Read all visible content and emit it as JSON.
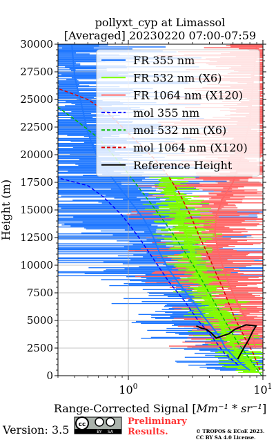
{
  "chart_data": {
    "type": "line",
    "title_line1": "pollyxt_cyp at Limassol",
    "title_line2": "[Averaged] 20230220 07:00-07:59",
    "xlabel_prefix": "Range-Corrected Signal [",
    "xlabel_math": "Mm⁻¹ * sr⁻¹",
    "xlabel_suffix": "]",
    "ylabel": "Height (m)",
    "xscale": "log",
    "xlim": [
      0.3,
      10.0
    ],
    "ylim": [
      0,
      30000
    ],
    "x_ticks": [
      {
        "value": 1,
        "base": "10",
        "exp": "0"
      },
      {
        "value": 10,
        "base": "10",
        "exp": "1"
      }
    ],
    "y_ticks": [
      "0",
      "2500",
      "5000",
      "7500",
      "10000",
      "12500",
      "15000",
      "17500",
      "20000",
      "22500",
      "25000",
      "27500",
      "30000"
    ],
    "legend_position": "top-right",
    "series": [
      {
        "name": "FR 355 nm",
        "color": "#1f77ff",
        "style": "solid",
        "points": [
          [
            8.0,
            500
          ],
          [
            7.0,
            1000
          ],
          [
            6.0,
            1800
          ],
          [
            5.2,
            2600
          ],
          [
            4.8,
            3500
          ],
          [
            4.2,
            4400
          ],
          [
            3.6,
            5400
          ],
          [
            3.0,
            6800
          ],
          [
            2.5,
            8000
          ],
          [
            2.0,
            9600
          ],
          [
            1.7,
            11200
          ],
          [
            1.5,
            12800
          ],
          [
            1.3,
            14200
          ],
          [
            1.0,
            16000
          ],
          [
            0.8,
            17500
          ],
          [
            0.6,
            19500
          ],
          [
            0.5,
            22000
          ],
          [
            0.45,
            24500
          ],
          [
            0.4,
            27000
          ],
          [
            0.38,
            30000
          ]
        ]
      },
      {
        "name": "FR 532 nm (X6)",
        "color": "#80ff00",
        "style": "solid",
        "points": [
          [
            9.0,
            300
          ],
          [
            7.0,
            1500
          ],
          [
            5.8,
            3000
          ],
          [
            5.0,
            4500
          ],
          [
            4.3,
            6000
          ],
          [
            3.8,
            7500
          ],
          [
            3.3,
            9000
          ],
          [
            3.0,
            10500
          ],
          [
            2.8,
            12000
          ],
          [
            2.6,
            13500
          ],
          [
            2.4,
            15000
          ],
          [
            2.2,
            16500
          ],
          [
            2.0,
            18000
          ]
        ]
      },
      {
        "name": "FR 1064 nm (X120)",
        "color": "#ff6666",
        "style": "solid",
        "points": [
          [
            8.8,
            2500
          ],
          [
            8.0,
            4500
          ],
          [
            6.5,
            6500
          ],
          [
            5.5,
            8500
          ],
          [
            5.0,
            10000
          ],
          [
            4.6,
            11500
          ],
          [
            4.4,
            13000
          ],
          [
            4.5,
            14500
          ],
          [
            5.0,
            16000
          ],
          [
            6.0,
            17500
          ],
          [
            7.0,
            20000
          ],
          [
            8.0,
            23000
          ],
          [
            8.5,
            27000
          ],
          [
            9.0,
            30000
          ]
        ]
      },
      {
        "name": "mol 355 nm",
        "color": "#0000ff",
        "style": "dashed",
        "points": [
          [
            6.5,
            1000
          ],
          [
            5.2,
            2000
          ],
          [
            4.2,
            3500
          ],
          [
            3.3,
            5000
          ],
          [
            2.6,
            6800
          ],
          [
            2.0,
            8500
          ],
          [
            1.55,
            10500
          ],
          [
            1.2,
            12500
          ],
          [
            0.9,
            14500
          ],
          [
            0.65,
            16200
          ],
          [
            0.5,
            17200
          ],
          [
            0.3,
            17900
          ]
        ]
      },
      {
        "name": "mol 532 nm (X6)",
        "color": "#00bb00",
        "style": "dashed",
        "points": [
          [
            9.8,
            0
          ],
          [
            8.0,
            1500
          ],
          [
            6.5,
            3000
          ],
          [
            5.2,
            5000
          ],
          [
            4.2,
            7000
          ],
          [
            3.4,
            9000
          ],
          [
            2.7,
            11000
          ],
          [
            2.1,
            13000
          ],
          [
            1.6,
            15000
          ],
          [
            1.2,
            17000
          ],
          [
            0.9,
            19000
          ],
          [
            0.6,
            21500
          ],
          [
            0.42,
            23000
          ],
          [
            0.3,
            24300
          ]
        ]
      },
      {
        "name": "mol 1064 nm (X120)",
        "color": "#dd0000",
        "style": "dashed",
        "points": [
          [
            9.5,
            500
          ],
          [
            8.5,
            2000
          ],
          [
            7.3,
            3500
          ],
          [
            6.3,
            5000
          ],
          [
            5.6,
            6500
          ],
          [
            5.0,
            8000
          ],
          [
            4.4,
            9500
          ],
          [
            3.9,
            11000
          ],
          [
            3.4,
            12500
          ],
          [
            2.9,
            14500
          ],
          [
            2.4,
            16500
          ],
          [
            2.0,
            18000
          ],
          [
            1.6,
            19500
          ],
          [
            1.2,
            21000
          ],
          [
            0.9,
            22500
          ],
          [
            0.7,
            23800
          ],
          [
            0.5,
            25000
          ],
          [
            0.3,
            26000
          ]
        ]
      },
      {
        "name": "Reference Height",
        "color": "#000000",
        "style": "solid",
        "points": [
          [
            6.5,
            1500
          ],
          [
            7.2,
            2500
          ],
          [
            7.8,
            3200
          ],
          [
            8.4,
            4000
          ],
          [
            8.9,
            4500
          ],
          [
            7.5,
            4600
          ],
          [
            6.8,
            4400
          ],
          [
            6.2,
            4200
          ],
          [
            5.6,
            3800
          ],
          [
            5.0,
            3600
          ],
          [
            4.5,
            3400
          ],
          [
            4.1,
            3900
          ],
          [
            3.8,
            4200
          ],
          [
            3.5,
            4300
          ],
          [
            3.2,
            4500
          ]
        ]
      }
    ]
  },
  "footer": {
    "version": "Version: 3.5",
    "cc_label": "cc",
    "cc_by": "BY",
    "cc_sa": "SA",
    "preliminary_line1": "Preliminary",
    "preliminary_line2": "Results.",
    "copyright_line1": "© TROPOS & ECoE 2023.",
    "copyright_line2": "CC BY SA 4.0 License."
  },
  "colors": {
    "preliminary": "#ff3333",
    "fr355_fill": "#1f77ff",
    "fr532_fill": "#80ff00",
    "fr1064_fill": "#ff6666"
  }
}
